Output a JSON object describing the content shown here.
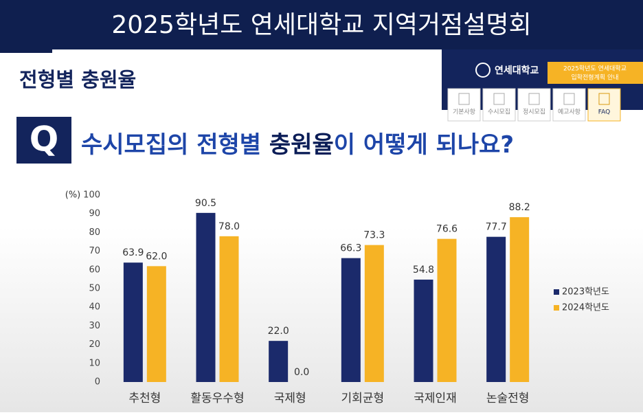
{
  "header": {
    "banner": "2025학년도 연세대학교 지역거점설명회",
    "section_title": "전형별 충원율",
    "logo": "연세대학교",
    "guide_line1": "2025학년도 연세대학교",
    "guide_line2": "입학전형계획 안내",
    "tabs": [
      "기본사항",
      "수시모집",
      "정시모집",
      "예고사항",
      "FAQ"
    ]
  },
  "question": {
    "mark": "Q",
    "before": "수시모집의 전형별 ",
    "highlight": "충원율",
    "after": "이 어떻게 되나요?"
  },
  "chart_data": {
    "type": "bar",
    "y_label": "(%)",
    "categories": [
      "추천형",
      "활동우수형",
      "국제형",
      "기회균형",
      "국제인재",
      "논술전형"
    ],
    "series": [
      {
        "name": "2023학년도",
        "color": "#1b2a6b",
        "values": [
          63.9,
          90.5,
          22,
          66.3,
          54.8,
          77.7
        ],
        "value_labels": [
          "63.9",
          "90.5",
          "22.0",
          "66.3",
          "54.8",
          "77.7"
        ]
      },
      {
        "name": "2024학년도",
        "color": "#f6b325",
        "values": [
          62,
          78,
          0,
          73.3,
          76.6,
          88.2
        ],
        "value_labels": [
          "62.0",
          "78.0",
          "0.0",
          "73.3",
          "76.6",
          "88.2"
        ]
      }
    ],
    "ylim": [
      0,
      100
    ],
    "yticks": [
      0,
      10,
      20,
      30,
      40,
      50,
      60,
      70,
      80,
      90,
      100
    ],
    "grid": false,
    "legend": "right"
  }
}
